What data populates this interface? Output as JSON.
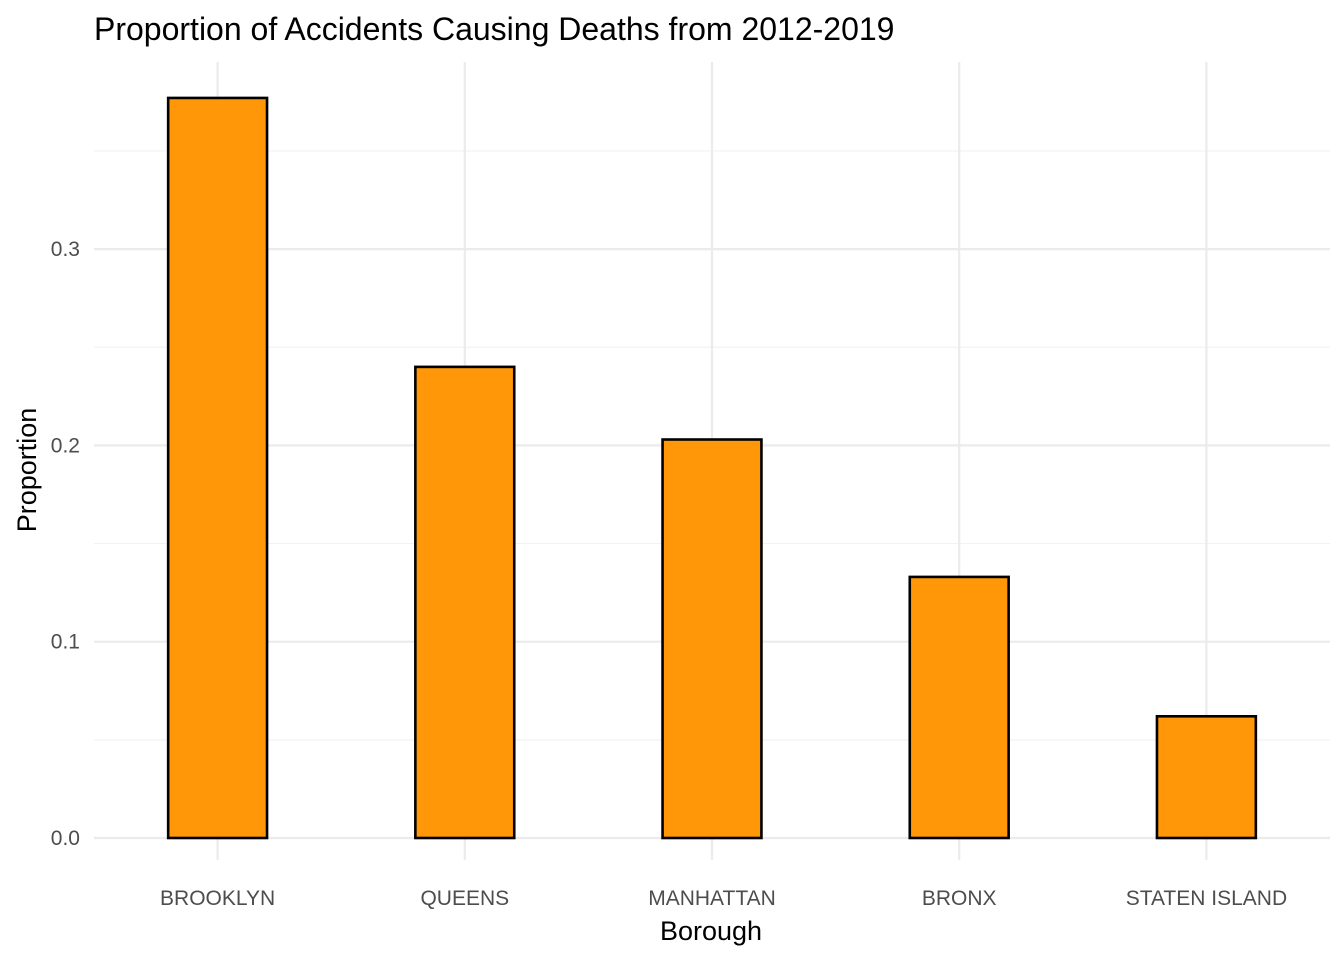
{
  "chart_data": {
    "type": "bar",
    "title": "Proportion of Accidents Causing Deaths from 2012-2019",
    "xlabel": "Borough",
    "ylabel": "Proportion",
    "categories": [
      "BROOKLYN",
      "QUEENS",
      "MANHATTAN",
      "BRONX",
      "STATEN ISLAND"
    ],
    "values": [
      0.377,
      0.24,
      0.203,
      0.133,
      0.062
    ],
    "ylim": [
      0,
      0.39
    ],
    "yticks": [
      0.0,
      0.1,
      0.2,
      0.3
    ],
    "ytick_labels": [
      "0.0",
      "0.1",
      "0.2",
      "0.3"
    ],
    "bar_color": "#FF9708",
    "bar_outline": "#000000",
    "grid": true,
    "legend": "none"
  }
}
